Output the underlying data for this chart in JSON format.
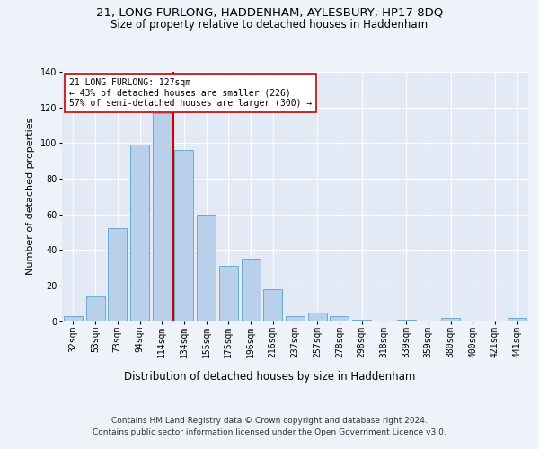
{
  "title": "21, LONG FURLONG, HADDENHAM, AYLESBURY, HP17 8DQ",
  "subtitle": "Size of property relative to detached houses in Haddenham",
  "xlabel": "Distribution of detached houses by size in Haddenham",
  "ylabel": "Number of detached properties",
  "footer_line1": "Contains HM Land Registry data © Crown copyright and database right 2024.",
  "footer_line2": "Contains public sector information licensed under the Open Government Licence v3.0.",
  "bar_labels": [
    "32sqm",
    "53sqm",
    "73sqm",
    "94sqm",
    "114sqm",
    "134sqm",
    "155sqm",
    "175sqm",
    "196sqm",
    "216sqm",
    "237sqm",
    "257sqm",
    "278sqm",
    "298sqm",
    "318sqm",
    "339sqm",
    "359sqm",
    "380sqm",
    "400sqm",
    "421sqm",
    "441sqm"
  ],
  "bar_values": [
    3,
    14,
    52,
    99,
    117,
    96,
    60,
    31,
    35,
    18,
    3,
    5,
    3,
    1,
    0,
    1,
    0,
    2,
    0,
    0,
    2
  ],
  "bar_color": "#b8d0ea",
  "bar_edge_color": "#6aaad4",
  "vline_x": 4.5,
  "vline_color": "#cc0000",
  "annotation_text": "21 LONG FURLONG: 127sqm\n← 43% of detached houses are smaller (226)\n57% of semi-detached houses are larger (300) →",
  "annotation_box_color": "#ffffff",
  "annotation_box_edge": "#cc0000",
  "ylim": [
    0,
    140
  ],
  "background_color": "#eef2f9",
  "axes_background": "#e4eaf5",
  "grid_color": "#ffffff",
  "title_fontsize": 9.5,
  "subtitle_fontsize": 8.5,
  "xlabel_fontsize": 8.5,
  "ylabel_fontsize": 8,
  "tick_fontsize": 7,
  "annotation_fontsize": 7,
  "footer_fontsize": 6.5
}
